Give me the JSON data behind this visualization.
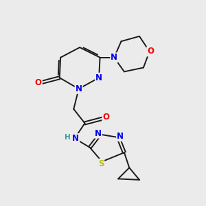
{
  "background_color": "#ebebeb",
  "bond_color": "#1a1a1a",
  "atom_colors": {
    "N": "#0000ee",
    "O": "#ee0000",
    "S": "#bbbb00",
    "H": "#3a9a9a"
  },
  "figsize": [
    3.0,
    3.0
  ],
  "dpi": 100,
  "lw": 1.4
}
